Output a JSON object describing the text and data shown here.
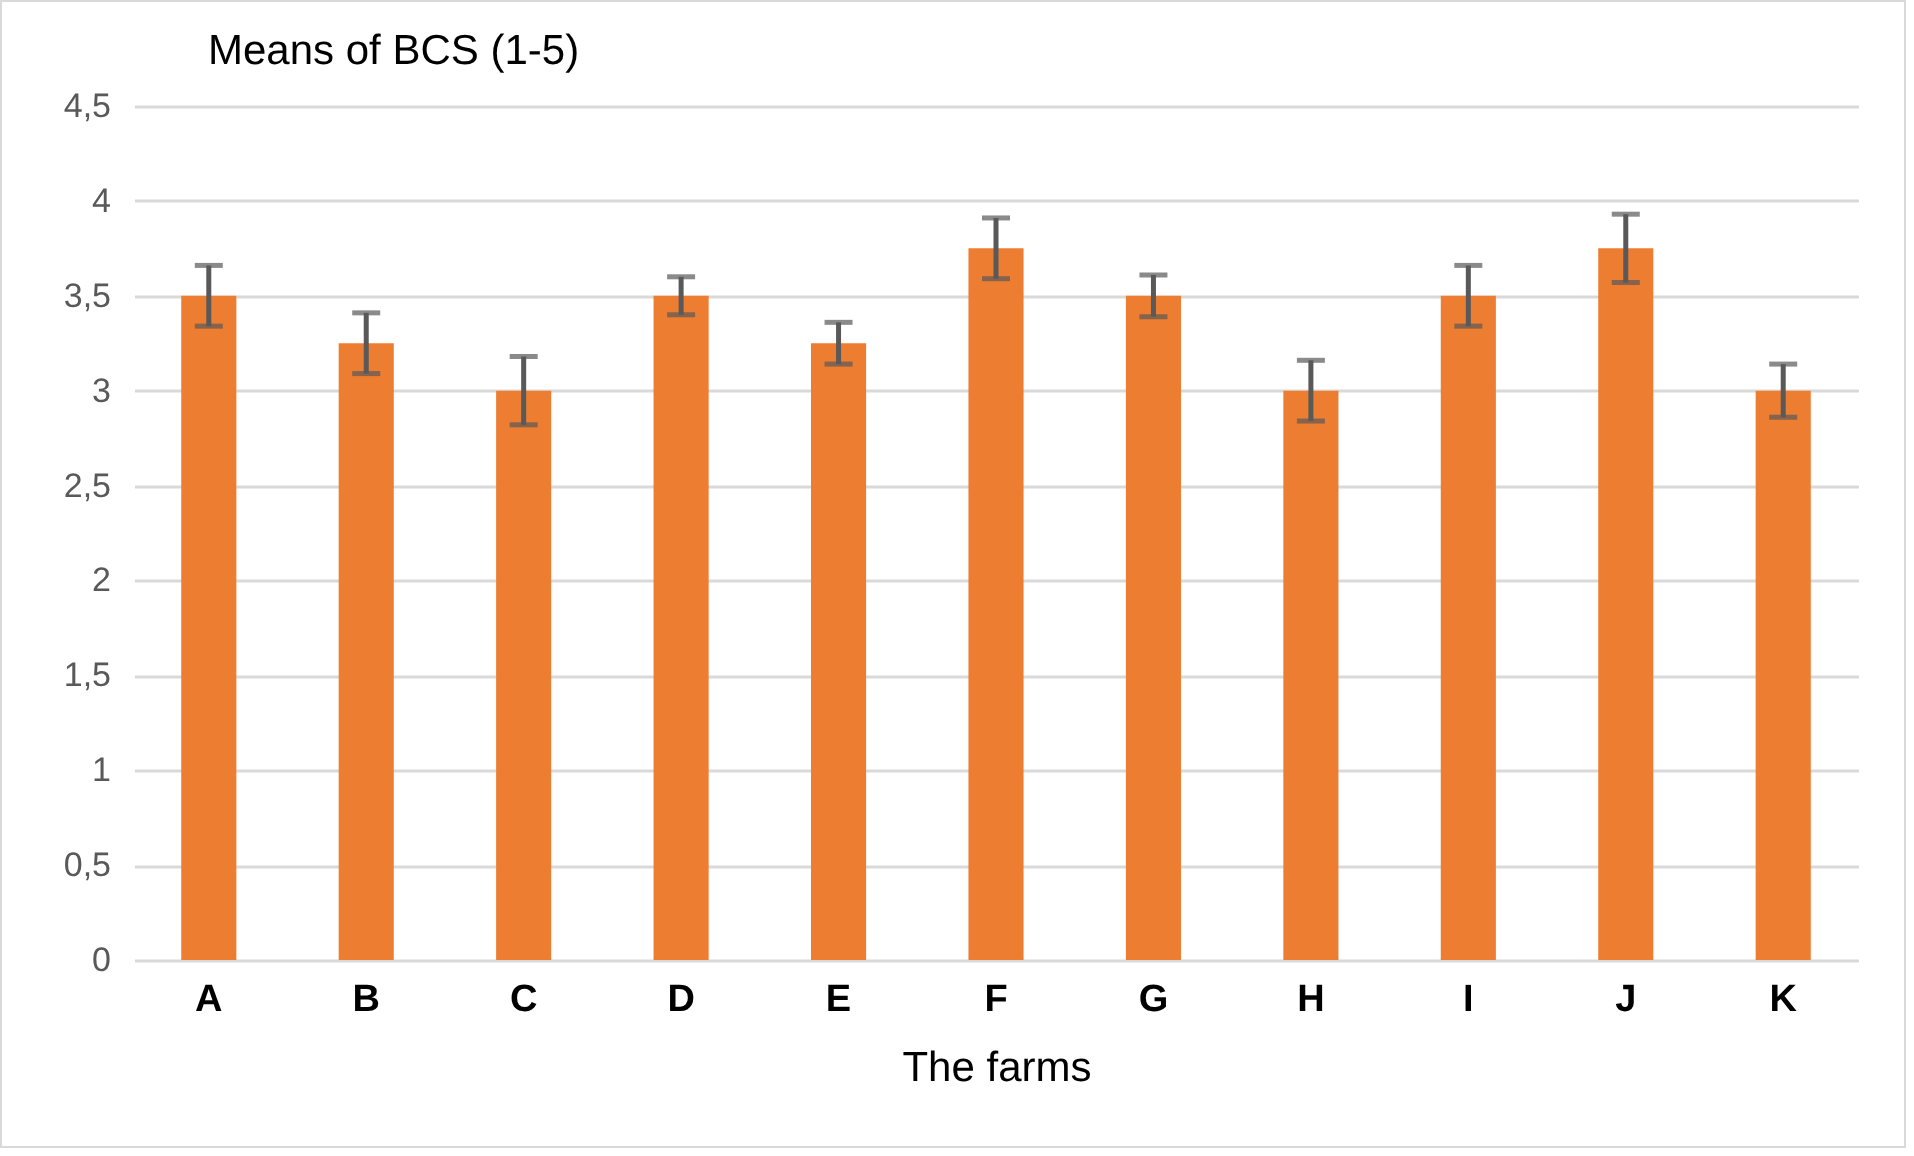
{
  "chart_data": {
    "type": "bar",
    "title": "Means of BCS (1-5)",
    "xlabel": "The farms",
    "categories": [
      "A",
      "B",
      "C",
      "D",
      "E",
      "F",
      "G",
      "H",
      "I",
      "J",
      "K"
    ],
    "values": [
      3.5,
      3.25,
      3,
      3.5,
      3.25,
      3.75,
      3.5,
      3,
      3.5,
      3.75,
      3
    ],
    "errors": [
      0.16,
      0.16,
      0.18,
      0.1,
      0.11,
      0.16,
      0.11,
      0.16,
      0.16,
      0.18,
      0.14
    ],
    "color": "#ed7d31",
    "ylim": [
      0,
      4.5
    ],
    "yticks": [
      {
        "value": 0,
        "label": "0"
      },
      {
        "value": 0.5,
        "label": "0,5"
      },
      {
        "value": 1,
        "label": "1"
      },
      {
        "value": 1.5,
        "label": "1,5"
      },
      {
        "value": 2,
        "label": "2"
      },
      {
        "value": 2.5,
        "label": "2,5"
      },
      {
        "value": 3,
        "label": "3"
      },
      {
        "value": 3.5,
        "label": "3,5"
      },
      {
        "value": 4,
        "label": "4"
      },
      {
        "value": 4.5,
        "label": "4,5"
      }
    ],
    "grid": "y"
  }
}
